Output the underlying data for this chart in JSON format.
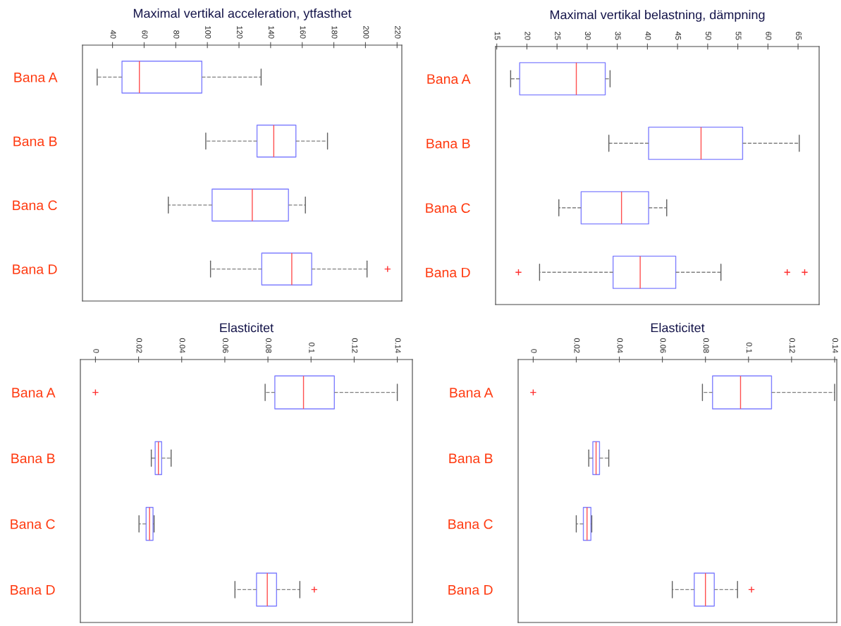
{
  "chart_data": [
    {
      "type": "box",
      "title": "Maximal vertikal acceleration, ytfasthet",
      "orientation": "horizontal",
      "categories": [
        "Bana A",
        "Bana B",
        "Bana C",
        "Bana D"
      ],
      "xlim": [
        21,
        223
      ],
      "xticks": [
        40,
        60,
        80,
        100,
        120,
        140,
        160,
        180,
        200,
        220
      ],
      "tick_labels": "x",
      "grid": false,
      "series": [
        {
          "color": "#8080ff",
          "boxes": [
            {
              "low": 30.3,
              "q1": 46,
              "median": 57,
              "q3": 96.5,
              "high": 134
            },
            {
              "low": 99,
              "q1": 131.4,
              "median": 142,
              "q3": 156,
              "high": 176
            },
            {
              "low": 75.3,
              "q1": 103,
              "median": 128.4,
              "q3": 151.3,
              "high": 162
            },
            {
              "low": 102,
              "q1": 134.4,
              "median": 153.4,
              "q3": 166,
              "high": 201,
              "outliers": [
                214
              ]
            }
          ]
        }
      ]
    },
    {
      "type": "box",
      "title": "Maximal vertikal belastning, dämpning",
      "orientation": "horizontal",
      "categories": [
        "Bana A",
        "Bana B",
        "Bana C",
        "Bana D"
      ],
      "xlim": [
        14.8,
        68.5
      ],
      "xticks": [
        15,
        20,
        25,
        30,
        35,
        40,
        45,
        50,
        55,
        60,
        65
      ],
      "tick_labels": "x",
      "grid": false,
      "series": [
        {
          "color": "#8080ff",
          "boxes": [
            {
              "low": 17.3,
              "q1": 18.8,
              "median": 28.2,
              "q3": 33.0,
              "high": 33.8
            },
            {
              "low": 33.6,
              "q1": 40.2,
              "median": 48.9,
              "q3": 55.8,
              "high": 65.2
            },
            {
              "low": 25.3,
              "q1": 29.0,
              "median": 35.7,
              "q3": 40.2,
              "high": 43.2
            },
            {
              "low": 22.1,
              "q1": 34.3,
              "median": 38.8,
              "q3": 44.7,
              "high": 52.2,
              "outliers": [
                18.6,
                63.2,
                66.1
              ]
            }
          ]
        }
      ]
    },
    {
      "type": "box",
      "title": "Elasticitet",
      "orientation": "horizontal",
      "categories": [
        "Bana A",
        "Bana B",
        "Bana C",
        "Bana D"
      ],
      "xlim": [
        -0.007,
        0.147
      ],
      "xticks": [
        0,
        0.02,
        0.04,
        0.06,
        0.08,
        0.1,
        0.12,
        0.14
      ],
      "tick_labels": "x",
      "grid": false,
      "series": [
        {
          "color": "#8080ff",
          "boxes": [
            {
              "low": 0.0787,
              "q1": 0.0832,
              "median": 0.0965,
              "q3": 0.1108,
              "high": 0.14,
              "outliers": [
                0
              ]
            },
            {
              "low": 0.0259,
              "q1": 0.0277,
              "median": 0.0292,
              "q3": 0.0307,
              "high": 0.0351
            },
            {
              "low": 0.0202,
              "q1": 0.0235,
              "median": 0.0251,
              "q3": 0.0267,
              "high": 0.0272
            },
            {
              "low": 0.0647,
              "q1": 0.0747,
              "median": 0.0797,
              "q3": 0.084,
              "high": 0.0948,
              "outliers": [
                0.1015
              ]
            }
          ]
        }
      ]
    },
    {
      "type": "box",
      "title": "Elasticitet",
      "orientation": "horizontal",
      "categories": [
        "Bana A",
        "Bana B",
        "Bana C",
        "Bana D"
      ],
      "xlim": [
        -0.007,
        0.141
      ],
      "xticks": [
        0,
        0.02,
        0.04,
        0.06,
        0.08,
        0.1,
        0.12,
        0.14
      ],
      "tick_labels": "x",
      "grid": false,
      "series": [
        {
          "color": "#8080ff",
          "boxes": [
            {
              "low": 0.0786,
              "q1": 0.0833,
              "median": 0.0963,
              "q3": 0.1107,
              "high": 0.14,
              "outliers": [
                0
              ]
            },
            {
              "low": 0.0258,
              "q1": 0.0277,
              "median": 0.0292,
              "q3": 0.0308,
              "high": 0.0351
            },
            {
              "low": 0.02,
              "q1": 0.0233,
              "median": 0.025,
              "q3": 0.0268,
              "high": 0.0272
            },
            {
              "low": 0.0646,
              "q1": 0.0748,
              "median": 0.08,
              "q3": 0.0841,
              "high": 0.0949,
              "outliers": [
                0.1014
              ]
            }
          ]
        }
      ]
    }
  ]
}
